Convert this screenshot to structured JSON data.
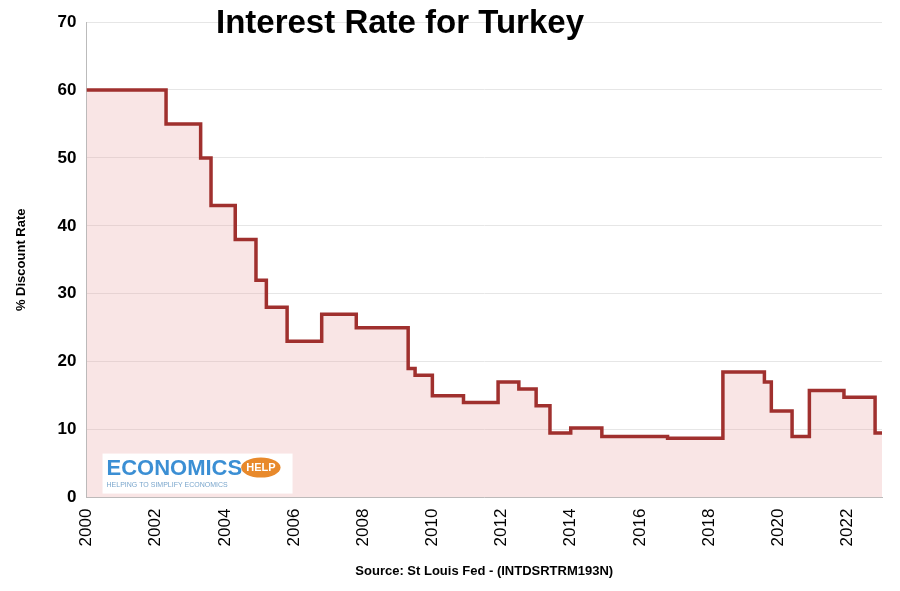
{
  "chart_data": {
    "type": "line",
    "title": "Interest Rate for Turkey",
    "x_label": "Source: St Louis Fed - (INTDSRTRM193N)",
    "y_label": "% Discount Rate",
    "annotations": [
      "ECONOMICS",
      "HELP",
      "HELPING TO SIMPLIFY ECONOMICS"
    ],
    "x": [
      2000,
      2002.3,
      2003.3,
      2003.6,
      2004.3,
      2004.9,
      2005.2,
      2005.8,
      2006.8,
      2007.8,
      2009.3,
      2009.5,
      2010.0,
      2010.9,
      2011.9,
      2012.5,
      2013.0,
      2013.4,
      2014.0,
      2014.9,
      2016.8,
      2018.4,
      2019.6,
      2019.8,
      2020.4,
      2020.9,
      2021.9,
      2022.8,
      2023.0
    ],
    "values": [
      60,
      55,
      50,
      43,
      38,
      32,
      28,
      23,
      27,
      25,
      19,
      18,
      15,
      14,
      17,
      16,
      13.5,
      9.5,
      10.25,
      9,
      8.75,
      18.5,
      17,
      12.75,
      9,
      15.75,
      14.75,
      9.5,
      9.5
    ],
    "color": "#a0302e",
    "line_style": "step",
    "xlim": [
      2000,
      2023
    ],
    "xticks": [
      2000,
      2002,
      2004,
      2006,
      2008,
      2010,
      2012,
      2014,
      2016,
      2018,
      2020,
      2022
    ],
    "ylim": [
      0,
      70
    ],
    "yticks": [
      0,
      10,
      20,
      30,
      40,
      50,
      60,
      70
    ],
    "grid": true
  }
}
